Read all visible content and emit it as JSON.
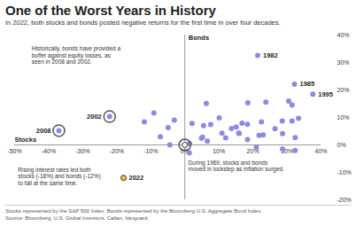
{
  "chart_data": {
    "type": "scatter",
    "title": "One of the Worst Years in History",
    "subtitle": "In 2022, both stocks and bonds posted negative returns for the first time in over four decades.",
    "x_label": "Stocks",
    "y_label": "Bonds",
    "color": "#8b8be0",
    "xlim": [
      -50,
      40
    ],
    "xticks": [
      {
        "value": -50,
        "label": "-50%"
      },
      {
        "value": -40,
        "label": "-40%"
      },
      {
        "value": -30,
        "label": "-30%"
      },
      {
        "value": -20,
        "label": "-20%"
      },
      {
        "value": -10,
        "label": "-10%"
      },
      {
        "value": 0,
        "label": "0%"
      },
      {
        "value": 10,
        "label": "10%"
      },
      {
        "value": 20,
        "label": "20%"
      },
      {
        "value": 30,
        "label": "30%"
      },
      {
        "value": 40,
        "label": "40%"
      }
    ],
    "ylim": [
      -20,
      40
    ],
    "yticks": [
      {
        "value": -20,
        "label": "-20%"
      },
      {
        "value": -10,
        "label": "-10%"
      },
      {
        "value": 0,
        "label": "0%"
      },
      {
        "value": 10,
        "label": "10%"
      },
      {
        "value": 20,
        "label": "20%"
      },
      {
        "value": 30,
        "label": "30%"
      },
      {
        "value": 40,
        "label": "40%"
      }
    ],
    "grid": false,
    "points": [
      {
        "x": 23.8,
        "y": 15.6
      },
      {
        "x": -7.2,
        "y": 3.0
      },
      {
        "x": 6.6,
        "y": 1.4
      },
      {
        "x": 18.4,
        "y": 1.9
      },
      {
        "x": 32.4,
        "y": 2.7
      },
      {
        "x": -4.9,
        "y": 6.3
      },
      {
        "x": 21.4,
        "y": 32.6,
        "label": "1982"
      },
      {
        "x": 22.5,
        "y": 8.4
      },
      {
        "x": 6.3,
        "y": 15.1
      },
      {
        "x": 32.2,
        "y": 22.1,
        "label": "1985"
      },
      {
        "x": 18.5,
        "y": 15.3
      },
      {
        "x": 5.2,
        "y": 2.8
      },
      {
        "x": 16.8,
        "y": 7.9
      },
      {
        "x": 31.5,
        "y": 14.5
      },
      {
        "x": -3.1,
        "y": 9.0
      },
      {
        "x": 30.5,
        "y": 16.0
      },
      {
        "x": 7.6,
        "y": 7.4
      },
      {
        "x": 10.1,
        "y": 9.8
      },
      {
        "x": 1.3,
        "y": -2.9
      },
      {
        "x": 37.6,
        "y": 18.5,
        "label": "1995"
      },
      {
        "x": 23.0,
        "y": 3.6
      },
      {
        "x": 33.4,
        "y": 9.7
      },
      {
        "x": 28.6,
        "y": 8.7
      },
      {
        "x": 21.0,
        "y": -0.8
      },
      {
        "x": -9.1,
        "y": 11.6
      },
      {
        "x": -11.9,
        "y": 8.4
      },
      {
        "x": -22.1,
        "y": 10.3,
        "label": "2002",
        "marker": "ring"
      },
      {
        "x": 28.7,
        "y": 4.1
      },
      {
        "x": 10.9,
        "y": 4.3
      },
      {
        "x": 4.9,
        "y": 2.4
      },
      {
        "x": 15.8,
        "y": 4.3
      },
      {
        "x": 5.5,
        "y": 7.0
      },
      {
        "x": -37.0,
        "y": 5.2,
        "label": "2008",
        "marker": "ring"
      },
      {
        "x": 26.5,
        "y": 5.9
      },
      {
        "x": 15.1,
        "y": 6.5
      },
      {
        "x": 2.1,
        "y": 7.8
      },
      {
        "x": 16.0,
        "y": 4.2
      },
      {
        "x": 32.4,
        "y": -2.0
      },
      {
        "x": 13.7,
        "y": 6.0
      },
      {
        "x": 1.4,
        "y": 0.5
      },
      {
        "x": 12.0,
        "y": 2.6
      },
      {
        "x": 21.8,
        "y": 3.5
      },
      {
        "x": -4.4,
        "y": 0.0
      },
      {
        "x": 31.5,
        "y": 8.7
      },
      {
        "x": 18.4,
        "y": 7.5
      },
      {
        "x": 28.7,
        "y": -1.5
      },
      {
        "x": -18,
        "y": -12,
        "label": "2022",
        "color": "#f5c542"
      },
      {
        "x": 0,
        "y": 0,
        "marker": "ring",
        "color": "#ffffff"
      }
    ],
    "annotations": [
      {
        "text": "Historically, bonds have provided a\nbuffer against equity losses, as\nseen in 2008 and 2002.",
        "x": -45,
        "y": 36
      },
      {
        "text": "Rising interest rates led both\nstocks (-18%) and bonds (-12%)\nto fall at the same time.",
        "x": -49,
        "y": -8
      },
      {
        "text": "During 1969, stocks and bonds\nmoved in lockstep as inflation surged.",
        "x": 1,
        "y": -5.5
      }
    ],
    "footer": [
      "Stocks represented by the S&P 500 Index. Bonds represented by the Bloomberg U.S. Aggregate Bond Index.",
      "Source: Bloomberg, U.S. Global Investors, Callan, Vanguard"
    ]
  }
}
